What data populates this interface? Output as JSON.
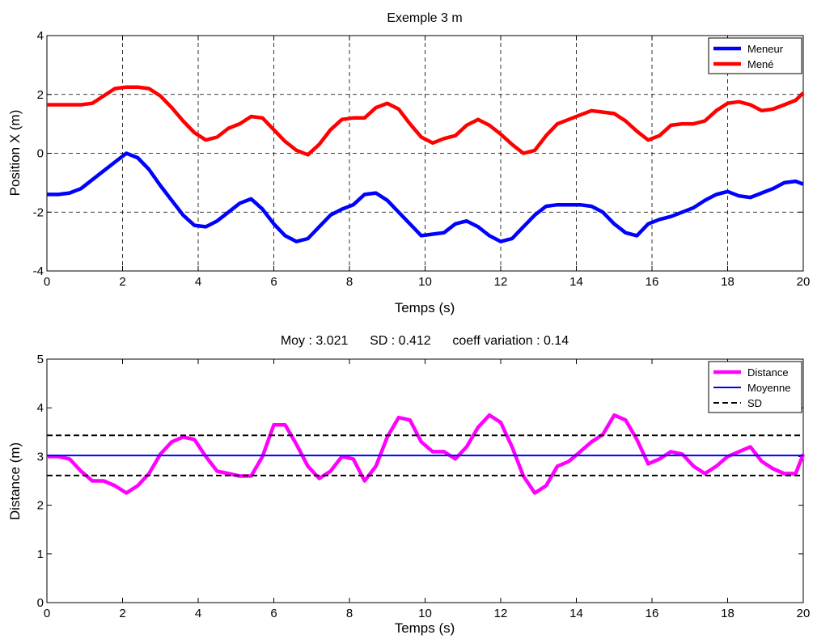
{
  "chart_data": [
    {
      "type": "line",
      "title": "Exemple 3 m",
      "xlabel": "Temps (s)",
      "ylabel": "Position X (m)",
      "xlim": [
        0,
        20
      ],
      "ylim": [
        -4,
        4
      ],
      "xticks": [
        0,
        2,
        4,
        6,
        8,
        10,
        12,
        14,
        16,
        18,
        20
      ],
      "yticks": [
        -4,
        -2,
        0,
        2,
        4
      ],
      "grid": true,
      "legend_position": "top-right",
      "series": [
        {
          "name": "Meneur",
          "color": "#0000ff",
          "dash": "solid",
          "x": [
            0,
            0.3,
            0.6,
            0.9,
            1.2,
            1.5,
            1.8,
            2.1,
            2.4,
            2.7,
            3.0,
            3.3,
            3.6,
            3.9,
            4.2,
            4.5,
            4.8,
            5.1,
            5.4,
            5.7,
            6.0,
            6.3,
            6.6,
            6.9,
            7.2,
            7.5,
            7.8,
            8.1,
            8.4,
            8.7,
            9.0,
            9.3,
            9.6,
            9.9,
            10.2,
            10.5,
            10.8,
            11.1,
            11.4,
            11.7,
            12.0,
            12.3,
            12.6,
            12.9,
            13.2,
            13.5,
            13.8,
            14.1,
            14.4,
            14.7,
            15.0,
            15.3,
            15.6,
            15.9,
            16.2,
            16.5,
            16.8,
            17.1,
            17.4,
            17.7,
            18.0,
            18.3,
            18.6,
            18.9,
            19.2,
            19.5,
            19.8,
            20.0
          ],
          "values": [
            -1.4,
            -1.4,
            -1.35,
            -1.2,
            -0.9,
            -0.6,
            -0.3,
            0.0,
            -0.15,
            -0.55,
            -1.1,
            -1.6,
            -2.1,
            -2.45,
            -2.5,
            -2.3,
            -2.0,
            -1.7,
            -1.55,
            -1.9,
            -2.4,
            -2.8,
            -3.0,
            -2.9,
            -2.5,
            -2.1,
            -1.9,
            -1.75,
            -1.4,
            -1.35,
            -1.6,
            -2.0,
            -2.4,
            -2.8,
            -2.75,
            -2.7,
            -2.4,
            -2.3,
            -2.5,
            -2.8,
            -3.0,
            -2.9,
            -2.5,
            -2.1,
            -1.8,
            -1.75,
            -1.75,
            -1.75,
            -1.8,
            -2.0,
            -2.4,
            -2.7,
            -2.8,
            -2.4,
            -2.25,
            -2.15,
            -2.0,
            -1.85,
            -1.6,
            -1.4,
            -1.3,
            -1.45,
            -1.5,
            -1.35,
            -1.2,
            -1.0,
            -0.95,
            -1.05
          ]
        },
        {
          "name": "Mené",
          "color": "#ff0000",
          "dash": "solid",
          "x": [
            0,
            0.3,
            0.6,
            0.9,
            1.2,
            1.5,
            1.8,
            2.1,
            2.4,
            2.7,
            3.0,
            3.3,
            3.6,
            3.9,
            4.2,
            4.5,
            4.8,
            5.1,
            5.4,
            5.7,
            6.0,
            6.3,
            6.6,
            6.9,
            7.2,
            7.5,
            7.8,
            8.1,
            8.4,
            8.7,
            9.0,
            9.3,
            9.6,
            9.9,
            10.2,
            10.5,
            10.8,
            11.1,
            11.4,
            11.7,
            12.0,
            12.3,
            12.6,
            12.9,
            13.2,
            13.5,
            13.8,
            14.1,
            14.4,
            14.7,
            15.0,
            15.3,
            15.6,
            15.9,
            16.2,
            16.5,
            16.8,
            17.1,
            17.4,
            17.7,
            18.0,
            18.3,
            18.6,
            18.9,
            19.2,
            19.5,
            19.8,
            20.0
          ],
          "values": [
            1.65,
            1.65,
            1.65,
            1.65,
            1.7,
            1.95,
            2.2,
            2.25,
            2.25,
            2.2,
            1.95,
            1.55,
            1.1,
            0.7,
            0.45,
            0.55,
            0.85,
            1.0,
            1.25,
            1.2,
            0.8,
            0.4,
            0.1,
            -0.05,
            0.3,
            0.8,
            1.15,
            1.2,
            1.2,
            1.55,
            1.7,
            1.5,
            1.0,
            0.55,
            0.35,
            0.5,
            0.6,
            0.95,
            1.15,
            0.95,
            0.65,
            0.3,
            0.0,
            0.1,
            0.6,
            1.0,
            1.15,
            1.3,
            1.45,
            1.4,
            1.35,
            1.1,
            0.75,
            0.45,
            0.6,
            0.95,
            1.0,
            1.0,
            1.1,
            1.45,
            1.7,
            1.75,
            1.65,
            1.45,
            1.5,
            1.65,
            1.8,
            2.05
          ]
        }
      ]
    },
    {
      "type": "line",
      "title": "Moy : 3.021      SD : 0.412      coeff variation : 0.14",
      "xlabel": "Temps (s)",
      "ylabel": "Distance (m)",
      "xlim": [
        0,
        20
      ],
      "ylim": [
        0,
        5
      ],
      "xticks": [
        0,
        2,
        4,
        6,
        8,
        10,
        12,
        14,
        16,
        18,
        20
      ],
      "yticks": [
        0,
        1,
        2,
        3,
        4,
        5
      ],
      "grid": false,
      "legend_position": "top-right",
      "series": [
        {
          "name": "Distance",
          "color": "#ff00ff",
          "dash": "solid",
          "x": [
            0,
            0.3,
            0.6,
            0.9,
            1.2,
            1.5,
            1.8,
            2.1,
            2.4,
            2.7,
            3.0,
            3.3,
            3.6,
            3.9,
            4.2,
            4.5,
            4.8,
            5.1,
            5.4,
            5.7,
            6.0,
            6.3,
            6.6,
            6.9,
            7.2,
            7.5,
            7.8,
            8.1,
            8.4,
            8.7,
            9.0,
            9.3,
            9.6,
            9.9,
            10.2,
            10.5,
            10.8,
            11.1,
            11.4,
            11.7,
            12.0,
            12.3,
            12.6,
            12.9,
            13.2,
            13.5,
            13.8,
            14.1,
            14.4,
            14.7,
            15.0,
            15.3,
            15.6,
            15.9,
            16.2,
            16.5,
            16.8,
            17.1,
            17.4,
            17.7,
            18.0,
            18.3,
            18.6,
            18.9,
            19.2,
            19.5,
            19.8,
            20.0
          ],
          "values": [
            3.0,
            3.0,
            2.95,
            2.7,
            2.5,
            2.5,
            2.4,
            2.25,
            2.4,
            2.65,
            3.05,
            3.3,
            3.4,
            3.35,
            3.0,
            2.7,
            2.65,
            2.6,
            2.6,
            3.0,
            3.65,
            3.65,
            3.25,
            2.8,
            2.55,
            2.7,
            3.0,
            2.95,
            2.5,
            2.8,
            3.4,
            3.8,
            3.75,
            3.3,
            3.1,
            3.1,
            2.95,
            3.2,
            3.6,
            3.85,
            3.7,
            3.2,
            2.6,
            2.25,
            2.4,
            2.8,
            2.9,
            3.1,
            3.3,
            3.45,
            3.85,
            3.75,
            3.35,
            2.85,
            2.95,
            3.1,
            3.05,
            2.8,
            2.65,
            2.8,
            3.0,
            3.1,
            3.2,
            2.9,
            2.75,
            2.65,
            2.65,
            3.05
          ]
        },
        {
          "name": "Moyenne",
          "color": "#0000ff",
          "dash": "solid",
          "x": [
            0,
            20
          ],
          "values": [
            3.021,
            3.021
          ]
        },
        {
          "name": "SD",
          "color": "#000000",
          "dash": "dashed",
          "x": [
            0,
            20
          ],
          "values": [
            3.433,
            3.433
          ],
          "x2": [
            0,
            20
          ],
          "values2": [
            2.609,
            2.609
          ]
        }
      ]
    }
  ]
}
